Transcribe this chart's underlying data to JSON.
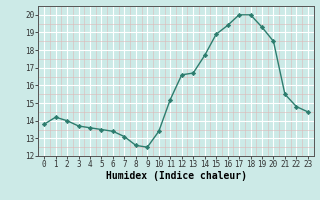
{
  "x": [
    0,
    1,
    2,
    3,
    4,
    5,
    6,
    7,
    8,
    9,
    10,
    11,
    12,
    13,
    14,
    15,
    16,
    17,
    18,
    19,
    20,
    21,
    22,
    23
  ],
  "y": [
    13.8,
    14.2,
    14.0,
    13.7,
    13.6,
    13.5,
    13.4,
    13.1,
    12.6,
    12.5,
    13.4,
    15.2,
    16.6,
    16.7,
    17.7,
    18.9,
    19.4,
    20.0,
    20.0,
    19.3,
    18.5,
    15.5,
    14.8,
    14.5
  ],
  "line_color": "#2d7d6e",
  "marker": "D",
  "marker_size": 2.2,
  "background_color": "#cceae7",
  "grid_color": "#ffffff",
  "grid_minor_color": "#e8f5f4",
  "xlabel": "Humidex (Indice chaleur)",
  "ylim": [
    12,
    20.5
  ],
  "yticks": [
    12,
    13,
    14,
    15,
    16,
    17,
    18,
    19,
    20
  ],
  "xticks": [
    0,
    1,
    2,
    3,
    4,
    5,
    6,
    7,
    8,
    9,
    10,
    11,
    12,
    13,
    14,
    15,
    16,
    17,
    18,
    19,
    20,
    21,
    22,
    23
  ],
  "tick_fontsize": 5.5,
  "xlabel_fontsize": 7.0,
  "line_width": 1.0
}
